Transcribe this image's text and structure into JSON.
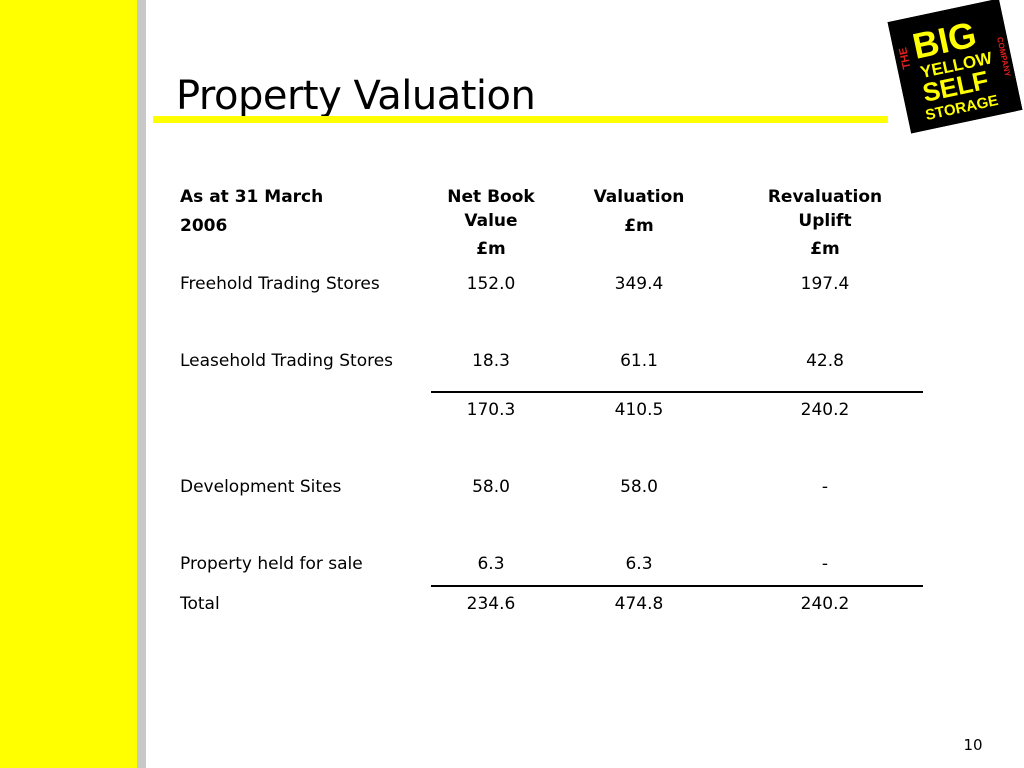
{
  "slide": {
    "title": "Property Valuation",
    "page_number": "10",
    "logo": {
      "lines": [
        "THE",
        "BIG",
        "YELLOW",
        "SELF",
        "STORAGE",
        "COMPANY"
      ]
    }
  },
  "table": {
    "headers": {
      "label_line1": "As at 31 March",
      "label_line2": "2006",
      "nbv_line1": "Net Book",
      "nbv_line2": "Value",
      "nbv_unit": "£m",
      "val_line1": "Valuation",
      "val_unit": "£m",
      "rev_line1": "Revaluation",
      "rev_line2": "Uplift",
      "rev_unit": "£m"
    },
    "rows": [
      {
        "label": "Freehold Trading Stores",
        "nbv": "152.0",
        "val": "349.4",
        "rev": "197.4"
      },
      {
        "label": "Leasehold Trading Stores",
        "nbv": "18.3",
        "val": "61.1",
        "rev": "42.8"
      },
      {
        "label": "",
        "nbv": "170.3",
        "val": "410.5",
        "rev": "240.2"
      },
      {
        "label": "Development Sites",
        "nbv": "58.0",
        "val": "58.0",
        "rev": "-"
      },
      {
        "label": "Property held for sale",
        "nbv": "6.3",
        "val": "6.3",
        "rev": "-"
      },
      {
        "label": "Total",
        "nbv": "234.6",
        "val": "474.8",
        "rev": "240.2"
      }
    ]
  },
  "colors": {
    "accent_yellow": "#ffff00",
    "side_grey": "#c8c8c8",
    "logo_black": "#000000",
    "logo_red": "#e0201b"
  }
}
